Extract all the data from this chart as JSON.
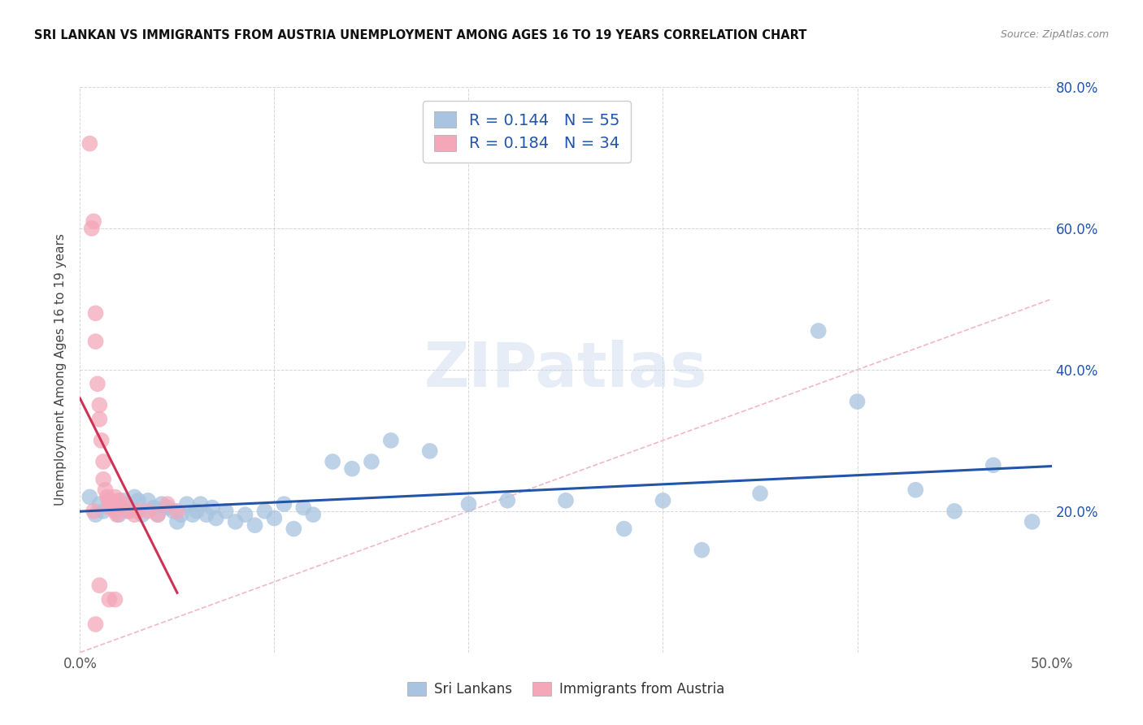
{
  "title": "SRI LANKAN VS IMMIGRANTS FROM AUSTRIA UNEMPLOYMENT AMONG AGES 16 TO 19 YEARS CORRELATION CHART",
  "source": "Source: ZipAtlas.com",
  "ylabel": "Unemployment Among Ages 16 to 19 years",
  "xlim": [
    0.0,
    0.5
  ],
  "ylim": [
    0.0,
    0.8
  ],
  "xticks": [
    0.0,
    0.1,
    0.2,
    0.3,
    0.4,
    0.5
  ],
  "xtick_labels": [
    "0.0%",
    "",
    "",
    "",
    "",
    "50.0%"
  ],
  "yticks": [
    0.0,
    0.2,
    0.4,
    0.6,
    0.8
  ],
  "ytick_labels_left": [
    "",
    "",
    "",
    "",
    ""
  ],
  "ytick_labels_right": [
    "",
    "20.0%",
    "40.0%",
    "60.0%",
    "80.0%"
  ],
  "sri_lankans_color": "#a8c4e0",
  "austria_color": "#f4a7b9",
  "sri_lankans_line_color": "#2255aa",
  "austria_line_color": "#cc3355",
  "diagonal_color": "#f0b0c0",
  "R_sri": 0.144,
  "N_sri": 55,
  "R_austria": 0.184,
  "N_austria": 34,
  "legend_label_sri": "Sri Lankans",
  "legend_label_austria": "Immigrants from Austria",
  "watermark": "ZIPatlas",
  "sri_x": [
    0.005,
    0.008,
    0.01,
    0.012,
    0.015,
    0.018,
    0.02,
    0.022,
    0.025,
    0.028,
    0.03,
    0.032,
    0.035,
    0.038,
    0.04,
    0.042,
    0.045,
    0.048,
    0.05,
    0.052,
    0.055,
    0.058,
    0.06,
    0.062,
    0.065,
    0.068,
    0.07,
    0.075,
    0.08,
    0.085,
    0.09,
    0.095,
    0.1,
    0.105,
    0.11,
    0.115,
    0.12,
    0.13,
    0.14,
    0.15,
    0.16,
    0.18,
    0.2,
    0.22,
    0.25,
    0.28,
    0.3,
    0.32,
    0.35,
    0.38,
    0.4,
    0.43,
    0.45,
    0.47,
    0.49
  ],
  "sri_y": [
    0.22,
    0.195,
    0.21,
    0.2,
    0.215,
    0.205,
    0.195,
    0.215,
    0.2,
    0.22,
    0.215,
    0.195,
    0.215,
    0.205,
    0.195,
    0.21,
    0.205,
    0.2,
    0.185,
    0.195,
    0.21,
    0.195,
    0.2,
    0.21,
    0.195,
    0.205,
    0.19,
    0.2,
    0.185,
    0.195,
    0.18,
    0.2,
    0.19,
    0.21,
    0.175,
    0.205,
    0.195,
    0.27,
    0.26,
    0.27,
    0.3,
    0.285,
    0.21,
    0.215,
    0.215,
    0.175,
    0.215,
    0.145,
    0.225,
    0.455,
    0.355,
    0.23,
    0.2,
    0.265,
    0.185
  ],
  "austria_x": [
    0.005,
    0.006,
    0.007,
    0.007,
    0.008,
    0.008,
    0.009,
    0.01,
    0.01,
    0.011,
    0.012,
    0.012,
    0.013,
    0.014,
    0.015,
    0.015,
    0.016,
    0.017,
    0.018,
    0.018,
    0.019,
    0.02,
    0.022,
    0.025,
    0.028,
    0.03,
    0.035,
    0.04,
    0.045,
    0.05,
    0.01,
    0.015,
    0.018,
    0.008
  ],
  "austria_y": [
    0.72,
    0.6,
    0.61,
    0.2,
    0.48,
    0.44,
    0.38,
    0.35,
    0.33,
    0.3,
    0.27,
    0.245,
    0.23,
    0.22,
    0.215,
    0.205,
    0.215,
    0.21,
    0.22,
    0.2,
    0.195,
    0.215,
    0.21,
    0.2,
    0.195,
    0.2,
    0.2,
    0.195,
    0.21,
    0.2,
    0.095,
    0.075,
    0.075,
    0.04
  ]
}
